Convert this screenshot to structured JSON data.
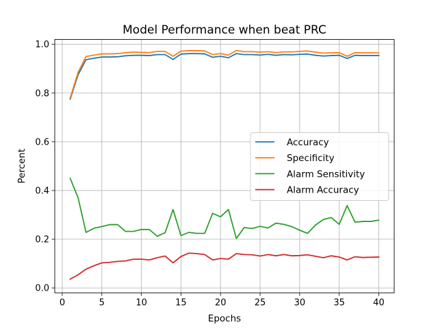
{
  "chart_data": {
    "type": "line",
    "title": "Model Performance when beat PRC",
    "xlabel": "Epochs",
    "ylabel": "Percent",
    "xlim": [
      -0.95,
      41.95
    ],
    "ylim": [
      -0.02,
      1.02
    ],
    "xticks": [
      0,
      5,
      10,
      15,
      20,
      25,
      30,
      35,
      40
    ],
    "yticks": [
      0.0,
      0.2,
      0.4,
      0.6,
      0.8,
      1.0
    ],
    "xtick_labels": [
      "0",
      "5",
      "10",
      "15",
      "20",
      "25",
      "30",
      "35",
      "40"
    ],
    "ytick_labels": [
      "0.0",
      "0.2",
      "0.4",
      "0.6",
      "0.8",
      "1.0"
    ],
    "grid": true,
    "legend_position": "center-right",
    "x": [
      1,
      2,
      3,
      4,
      5,
      6,
      7,
      8,
      9,
      10,
      11,
      12,
      13,
      14,
      15,
      16,
      17,
      18,
      19,
      20,
      21,
      22,
      23,
      24,
      25,
      26,
      27,
      28,
      29,
      30,
      31,
      32,
      33,
      34,
      35,
      36,
      37,
      38,
      39,
      40
    ],
    "series": [
      {
        "name": "Accuracy",
        "color": "#1f77b4",
        "values": [
          0.775,
          0.875,
          0.937,
          0.943,
          0.948,
          0.948,
          0.949,
          0.953,
          0.955,
          0.955,
          0.954,
          0.958,
          0.958,
          0.938,
          0.96,
          0.962,
          0.962,
          0.961,
          0.947,
          0.951,
          0.945,
          0.962,
          0.958,
          0.958,
          0.956,
          0.959,
          0.955,
          0.958,
          0.957,
          0.959,
          0.96,
          0.955,
          0.952,
          0.954,
          0.955,
          0.942,
          0.955,
          0.954,
          0.954,
          0.954
        ]
      },
      {
        "name": "Specificity",
        "color": "#ff7f0e",
        "values": [
          0.78,
          0.885,
          0.95,
          0.956,
          0.961,
          0.961,
          0.962,
          0.966,
          0.968,
          0.967,
          0.966,
          0.971,
          0.971,
          0.951,
          0.972,
          0.974,
          0.974,
          0.973,
          0.958,
          0.962,
          0.956,
          0.975,
          0.97,
          0.97,
          0.968,
          0.97,
          0.966,
          0.969,
          0.969,
          0.971,
          0.973,
          0.968,
          0.964,
          0.965,
          0.966,
          0.951,
          0.966,
          0.965,
          0.965,
          0.965
        ]
      },
      {
        "name": "Alarm Sensitivity",
        "color": "#2ca02c",
        "values": [
          0.45,
          0.37,
          0.228,
          0.245,
          0.252,
          0.26,
          0.26,
          0.232,
          0.232,
          0.24,
          0.24,
          0.212,
          0.227,
          0.322,
          0.215,
          0.228,
          0.224,
          0.224,
          0.306,
          0.292,
          0.322,
          0.203,
          0.248,
          0.244,
          0.253,
          0.246,
          0.266,
          0.261,
          0.252,
          0.237,
          0.224,
          0.258,
          0.281,
          0.289,
          0.261,
          0.338,
          0.27,
          0.273,
          0.273,
          0.278
        ]
      },
      {
        "name": "Alarm Accuracy",
        "color": "#d62728",
        "values": [
          0.036,
          0.054,
          0.077,
          0.091,
          0.103,
          0.105,
          0.109,
          0.111,
          0.118,
          0.118,
          0.115,
          0.124,
          0.131,
          0.103,
          0.129,
          0.143,
          0.141,
          0.137,
          0.115,
          0.121,
          0.118,
          0.141,
          0.137,
          0.136,
          0.131,
          0.137,
          0.132,
          0.137,
          0.132,
          0.133,
          0.136,
          0.13,
          0.124,
          0.132,
          0.127,
          0.115,
          0.128,
          0.125,
          0.126,
          0.127
        ]
      }
    ]
  }
}
